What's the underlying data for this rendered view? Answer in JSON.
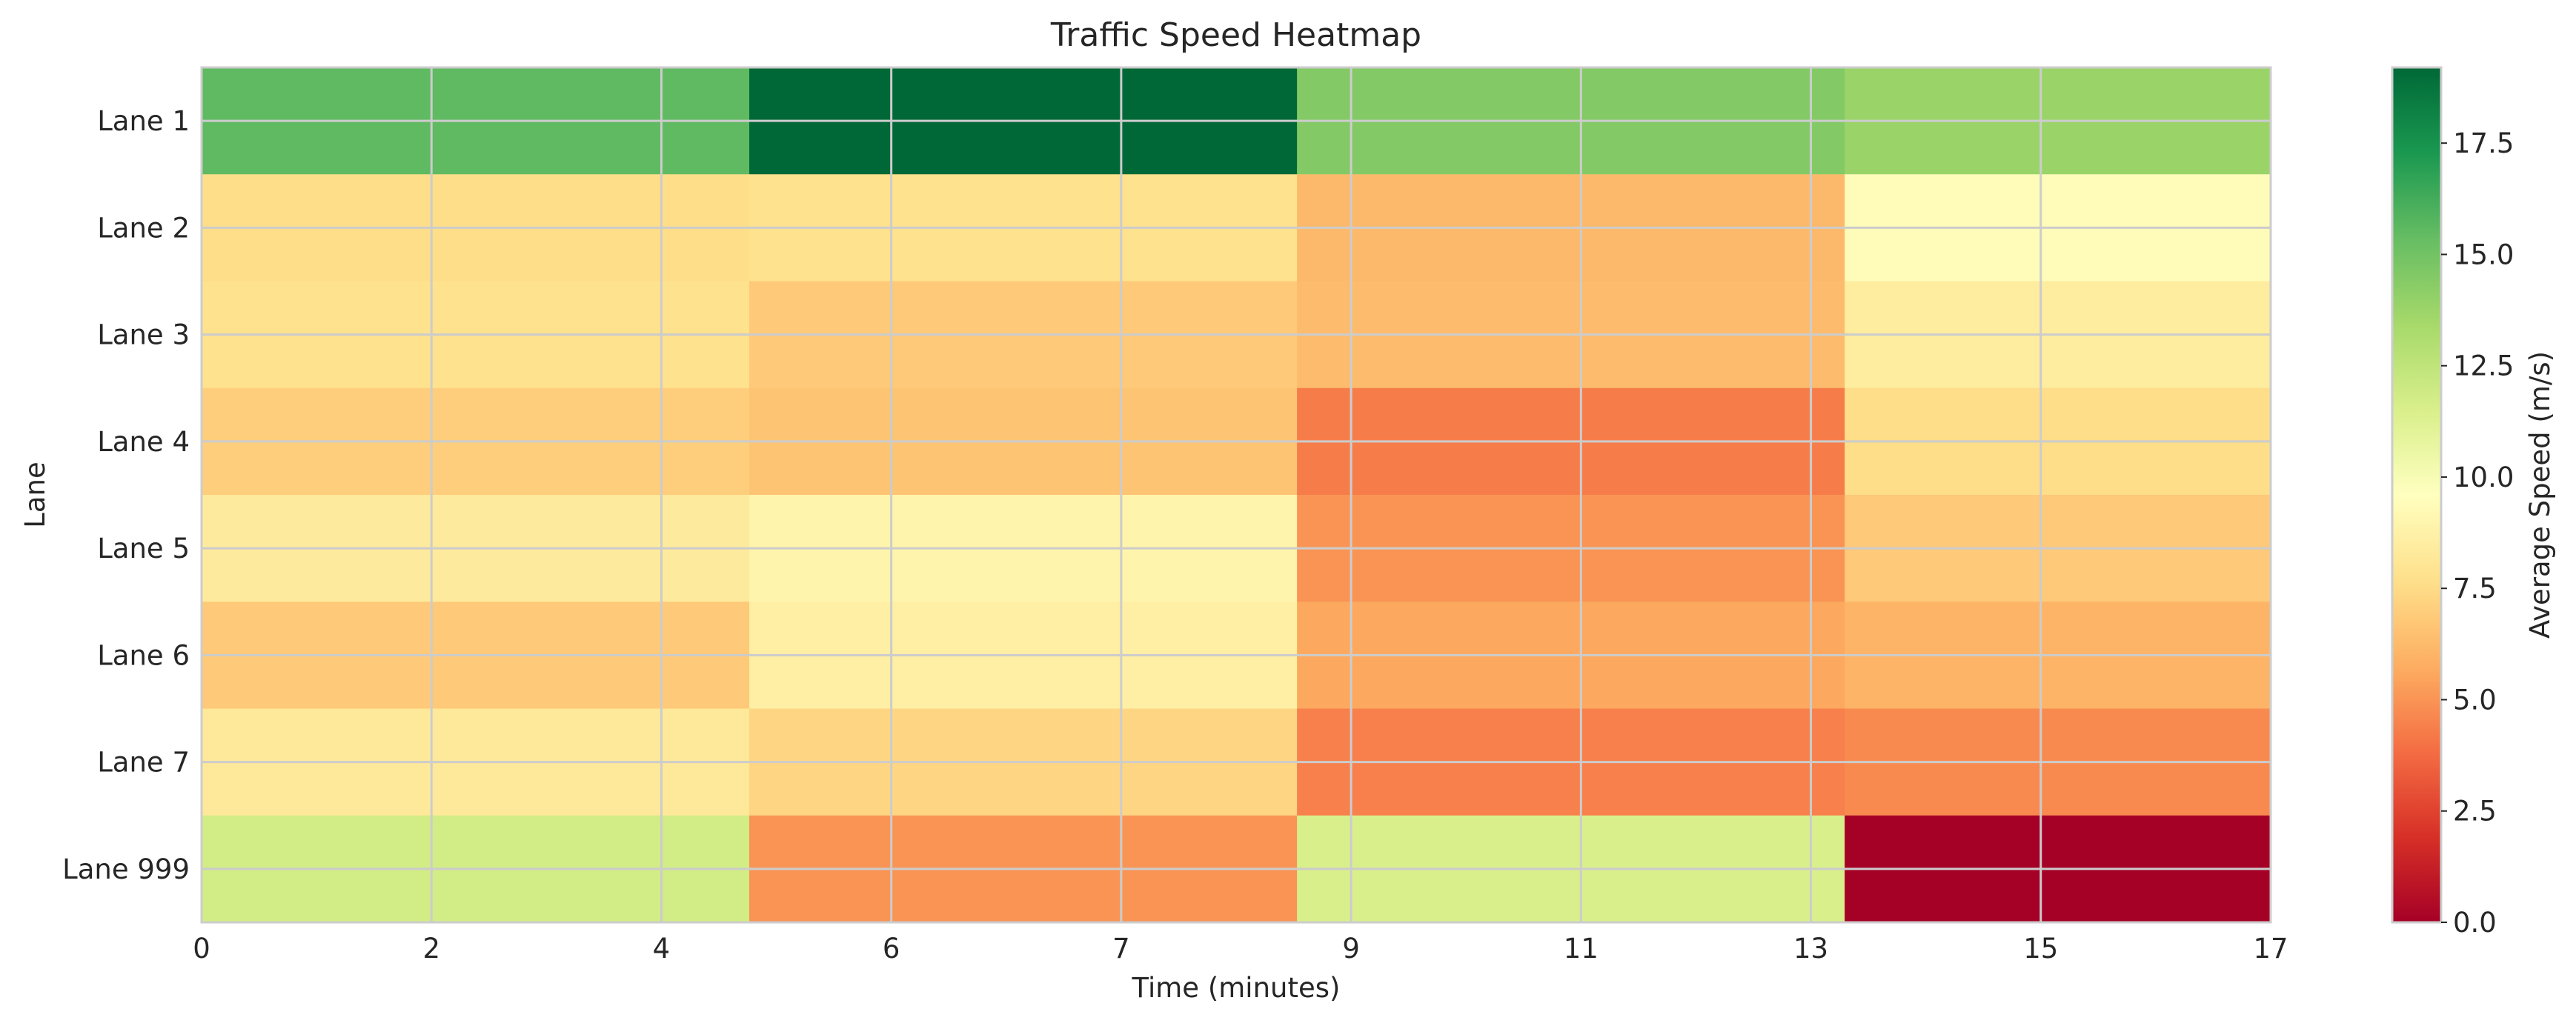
{
  "chart_data": {
    "type": "heatmap",
    "title": "Traffic Speed Heatmap",
    "xlabel": "Time (minutes)",
    "ylabel": "Lane",
    "x_ticks": [
      "0",
      "2",
      "4",
      "6",
      "7",
      "9",
      "11",
      "13",
      "15",
      "17"
    ],
    "x_range": [
      0,
      17
    ],
    "x_bin_edges": [
      0,
      4.5,
      9,
      13.5,
      18
    ],
    "rows": [
      "Lane 1",
      "Lane 2",
      "Lane 3",
      "Lane 4",
      "Lane 5",
      "Lane 6",
      "Lane 7",
      "Lane 999"
    ],
    "values": [
      [
        15.5,
        19.2,
        14.5,
        13.8
      ],
      [
        7.6,
        7.8,
        6.2,
        9.4
      ],
      [
        7.8,
        6.8,
        6.3,
        8.4
      ],
      [
        7.0,
        6.6,
        4.3,
        7.6
      ],
      [
        8.3,
        8.9,
        5.0,
        6.8
      ],
      [
        6.8,
        8.6,
        5.6,
        6.0
      ],
      [
        8.2,
        7.3,
        4.4,
        4.7
      ],
      [
        11.8,
        5.0,
        11.5,
        0.0
      ]
    ],
    "colorbar": {
      "label": "Average Speed (m/s)",
      "range": [
        0,
        19.2
      ],
      "ticks": [
        "0.0",
        "2.5",
        "5.0",
        "7.5",
        "10.0",
        "12.5",
        "15.0",
        "17.5"
      ],
      "colormap": "RdYlGn",
      "stops": [
        "#a50026",
        "#d73027",
        "#f46d43",
        "#fdae61",
        "#fee08b",
        "#ffffbf",
        "#d9ef8b",
        "#a6d96a",
        "#66bd63",
        "#1a9850",
        "#006837"
      ]
    },
    "grid": true
  }
}
